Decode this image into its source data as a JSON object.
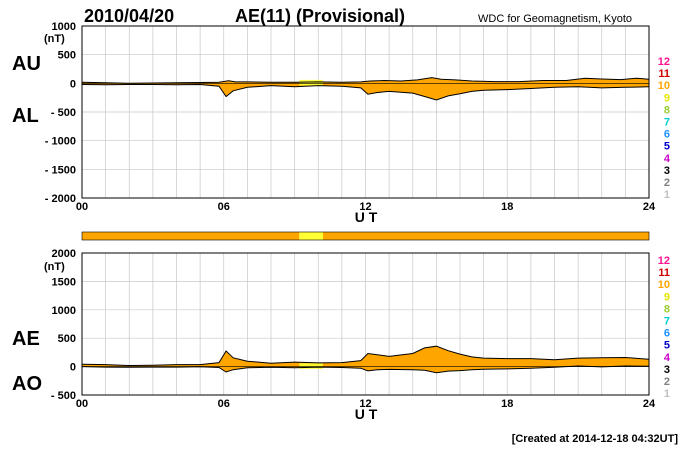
{
  "header": {
    "date": "2010/04/20",
    "title": "AE(11) (Provisional)",
    "source": "WDC for Geomagnetism, Kyoto"
  },
  "footer": {
    "created": "[Created at 2014-12-18 04:32UT]"
  },
  "colors": {
    "fill_main": "#ffa500",
    "fill_yellow": "#ffff33",
    "grid": "#c8c8c8",
    "curve": "#000000"
  },
  "station_scale": {
    "labels": [
      "12",
      "11",
      "10",
      "9",
      "8",
      "7",
      "6",
      "5",
      "4",
      "3",
      "2",
      "1"
    ],
    "colors": [
      "#ff1493",
      "#d00000",
      "#ffa500",
      "#e6e600",
      "#9acd32",
      "#00ced1",
      "#1e90ff",
      "#0000cd",
      "#cc00cc",
      "#000000",
      "#808080",
      "#c0c0c0"
    ]
  },
  "chart_data": [
    {
      "type": "area",
      "panel": "AU/AL",
      "labels_upper": "AU",
      "labels_lower": "AL",
      "unit": "(nT)",
      "xlabel": "U T",
      "x_ticks": [
        "00",
        "06",
        "12",
        "18",
        "24"
      ],
      "xlim": [
        0,
        24
      ],
      "ylim": [
        -2000,
        1000
      ],
      "y_ticks": [
        1000,
        500,
        0,
        -500,
        -1000,
        -1500,
        -2000
      ],
      "y_tick_labels": [
        "1000",
        "500",
        "0",
        "- 500",
        "- 1000",
        "- 1500",
        "- 2000"
      ],
      "grid": true,
      "series": [
        {
          "name": "AU",
          "x": [
            0,
            1,
            2,
            3,
            4,
            5,
            5.8,
            6.2,
            6.5,
            7,
            8,
            9,
            10,
            11,
            11.8,
            12.2,
            12.8,
            13.5,
            14.2,
            14.8,
            15.2,
            15.8,
            16.5,
            17.5,
            18.5,
            19.5,
            20.5,
            21.3,
            22,
            22.8,
            23.5,
            24
          ],
          "values": [
            20,
            10,
            0,
            5,
            10,
            15,
            20,
            45,
            25,
            25,
            20,
            20,
            25,
            20,
            25,
            40,
            50,
            40,
            60,
            100,
            70,
            60,
            40,
            30,
            30,
            50,
            50,
            90,
            75,
            65,
            90,
            70
          ]
        },
        {
          "name": "AL",
          "x": [
            0,
            1,
            2,
            3,
            4,
            5,
            5.8,
            6.1,
            6.4,
            7,
            8,
            9,
            10,
            11,
            11.8,
            12.1,
            12.5,
            13,
            14,
            14.5,
            15,
            15.5,
            16,
            16.5,
            17,
            18,
            19,
            20,
            21,
            22,
            23,
            24
          ],
          "values": [
            -20,
            -25,
            -20,
            -20,
            -25,
            -20,
            -50,
            -230,
            -130,
            -70,
            -40,
            -60,
            -40,
            -50,
            -80,
            -190,
            -160,
            -140,
            -170,
            -230,
            -290,
            -220,
            -180,
            -140,
            -120,
            -110,
            -90,
            -70,
            -60,
            -80,
            -70,
            -60
          ]
        }
      ]
    },
    {
      "type": "area",
      "panel": "AE/AO",
      "labels_upper": "AE",
      "labels_lower": "AO",
      "unit": "(nT)",
      "xlabel": "U T",
      "x_ticks": [
        "00",
        "06",
        "12",
        "18",
        "24"
      ],
      "xlim": [
        0,
        24
      ],
      "ylim": [
        -500,
        2000
      ],
      "y_ticks": [
        2000,
        1500,
        1000,
        500,
        0,
        -500
      ],
      "y_tick_labels": [
        "2000",
        "1500",
        "1000",
        "500",
        "0",
        "- 500"
      ],
      "grid": true,
      "series": [
        {
          "name": "AE",
          "x": [
            0,
            1,
            2,
            3,
            4,
            5,
            5.8,
            6.1,
            6.4,
            7,
            8,
            9,
            10,
            11,
            11.8,
            12.1,
            12.5,
            13,
            14,
            14.5,
            15,
            15.5,
            16,
            16.5,
            17,
            18,
            19,
            20,
            21,
            22,
            23,
            24
          ],
          "values": [
            40,
            35,
            20,
            25,
            35,
            35,
            70,
            275,
            155,
            95,
            60,
            80,
            65,
            70,
            105,
            230,
            210,
            180,
            230,
            330,
            360,
            280,
            220,
            170,
            150,
            140,
            140,
            120,
            150,
            155,
            160,
            130
          ]
        },
        {
          "name": "AO",
          "x": [
            0,
            1,
            2,
            3,
            4,
            5,
            5.8,
            6.1,
            6.4,
            7,
            8,
            9,
            10,
            11,
            11.8,
            12.1,
            12.5,
            13,
            14,
            14.5,
            15,
            15.5,
            16,
            16.5,
            17,
            18,
            19,
            20,
            21,
            22,
            23,
            24
          ],
          "values": [
            0,
            -8,
            -10,
            -8,
            -8,
            -3,
            -15,
            -95,
            -55,
            -22,
            -10,
            -20,
            -8,
            -15,
            -28,
            -75,
            -55,
            -50,
            -55,
            -65,
            -110,
            -80,
            -70,
            -55,
            -45,
            -40,
            -30,
            -10,
            10,
            -5,
            10,
            5
          ]
        }
      ]
    }
  ],
  "coverage_bar": {
    "segments": [
      {
        "from": 0,
        "to": 9.2,
        "station_count": "10"
      },
      {
        "from": 9.2,
        "to": 10.2,
        "station_count": "9"
      },
      {
        "from": 10.2,
        "to": 24,
        "station_count": "10"
      }
    ]
  }
}
